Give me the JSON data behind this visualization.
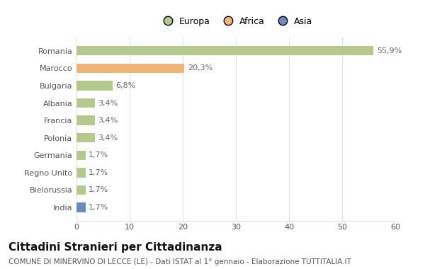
{
  "categories": [
    "Romania",
    "Marocco",
    "Bulgaria",
    "Albania",
    "Francia",
    "Polonia",
    "Germania",
    "Regno Unito",
    "Bielorussia",
    "India"
  ],
  "values": [
    55.9,
    20.3,
    6.8,
    3.4,
    3.4,
    3.4,
    1.7,
    1.7,
    1.7,
    1.7
  ],
  "labels": [
    "55,9%",
    "20,3%",
    "6,8%",
    "3,4%",
    "3,4%",
    "3,4%",
    "1,7%",
    "1,7%",
    "1,7%",
    "1,7%"
  ],
  "colors": [
    "#b5c98e",
    "#f0b47a",
    "#b5c98e",
    "#b5c98e",
    "#b5c98e",
    "#b5c98e",
    "#b5c98e",
    "#b5c98e",
    "#b5c98e",
    "#6b8cba"
  ],
  "legend_labels": [
    "Europa",
    "Africa",
    "Asia"
  ],
  "legend_colors": [
    "#b5c98e",
    "#f0b47a",
    "#6b8cba"
  ],
  "title": "Cittadini Stranieri per Cittadinanza",
  "subtitle": "COMUNE DI MINERVINO DI LECCE (LE) - Dati ISTAT al 1° gennaio - Elaborazione TUTTITALIA.IT",
  "xlim": [
    0,
    60
  ],
  "xticks": [
    0,
    10,
    20,
    30,
    40,
    50,
    60
  ],
  "background_color": "#ffffff",
  "grid_color": "#e0e0e0",
  "bar_height": 0.55,
  "title_fontsize": 11,
  "subtitle_fontsize": 7.5,
  "label_fontsize": 8,
  "tick_fontsize": 8,
  "legend_fontsize": 9
}
